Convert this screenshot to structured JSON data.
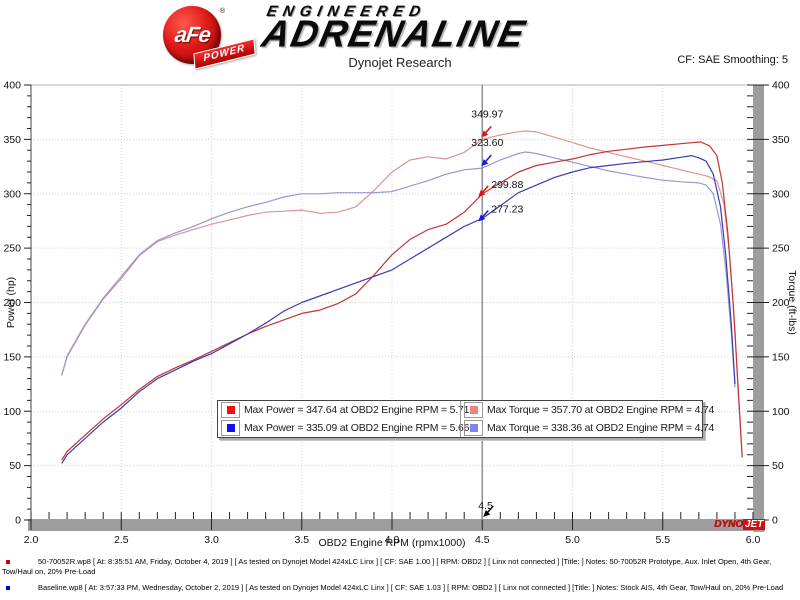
{
  "header": {
    "logo": {
      "afe": "aFe",
      "power": "POWER",
      "reg": "®"
    },
    "engineered": "ENGINEERED",
    "adrenaline": "ADRENALINE",
    "subtitle": "Dynojet Research",
    "cf_smoothing": "CF: SAE Smoothing: 5"
  },
  "chart_data": {
    "type": "line",
    "title": "",
    "xlabel": "OBD2 Engine RPM (rpmx1000)",
    "ylabel_left": "Power (hp)",
    "ylabel_right": "Torque (ft-lbs)",
    "xlim": [
      2.0,
      6.0
    ],
    "ylim": [
      0,
      400
    ],
    "x_major_ticks": [
      2.0,
      2.5,
      3.0,
      3.5,
      4.0,
      4.5,
      5.0,
      5.5,
      6.0
    ],
    "x_minor_step": 0.1,
    "y_major_ticks": [
      0,
      50,
      100,
      150,
      200,
      250,
      300,
      350,
      400
    ],
    "y_minor_step": 10,
    "grid": "dotted",
    "cursor": {
      "x": 4.5,
      "label": "4.5",
      "readouts": [
        {
          "value": 349.97,
          "label": "349.97",
          "series": "intake-torque",
          "side": "left",
          "text_color": "#e08888",
          "arrow_color": "#e01010"
        },
        {
          "value": 323.6,
          "label": "323.60",
          "series": "baseline-torque",
          "side": "left",
          "text_color": "#8888dd",
          "arrow_color": "#1616e6"
        },
        {
          "value": 299.88,
          "label": "299.88",
          "series": "intake-power",
          "side": "right",
          "text_color": "#cc3333",
          "arrow_color": "#e01010"
        },
        {
          "value": 277.23,
          "label": "277.23",
          "series": "baseline-power",
          "side": "right",
          "text_color": "#3f3fc6",
          "arrow_color": "#1616e6"
        }
      ]
    },
    "series": [
      {
        "name": "intake-torque",
        "axis": "torque",
        "color": "#dc9393",
        "points": [
          [
            2.17,
            133
          ],
          [
            2.2,
            150
          ],
          [
            2.3,
            179
          ],
          [
            2.4,
            203
          ],
          [
            2.5,
            222
          ],
          [
            2.6,
            243
          ],
          [
            2.7,
            256
          ],
          [
            2.8,
            262
          ],
          [
            2.9,
            267
          ],
          [
            3.0,
            272
          ],
          [
            3.1,
            276
          ],
          [
            3.2,
            280
          ],
          [
            3.3,
            283
          ],
          [
            3.4,
            284
          ],
          [
            3.5,
            285
          ],
          [
            3.6,
            282
          ],
          [
            3.7,
            283
          ],
          [
            3.8,
            288
          ],
          [
            3.9,
            303
          ],
          [
            4.0,
            320
          ],
          [
            4.1,
            331
          ],
          [
            4.2,
            334
          ],
          [
            4.3,
            332
          ],
          [
            4.4,
            338
          ],
          [
            4.5,
            349.97
          ],
          [
            4.6,
            354
          ],
          [
            4.7,
            357
          ],
          [
            4.74,
            357.7
          ],
          [
            4.8,
            357
          ],
          [
            4.9,
            352
          ],
          [
            5.0,
            347
          ],
          [
            5.1,
            342
          ],
          [
            5.2,
            338
          ],
          [
            5.3,
            334
          ],
          [
            5.4,
            330
          ],
          [
            5.5,
            326
          ],
          [
            5.6,
            322
          ],
          [
            5.7,
            318
          ],
          [
            5.75,
            316
          ],
          [
            5.8,
            312
          ],
          [
            5.84,
            290
          ],
          [
            5.87,
            245
          ],
          [
            5.9,
            175
          ],
          [
            5.92,
            110
          ],
          [
            5.94,
            57
          ]
        ]
      },
      {
        "name": "baseline-torque",
        "axis": "torque",
        "color": "#9797d7",
        "points": [
          [
            2.17,
            133
          ],
          [
            2.2,
            151
          ],
          [
            2.3,
            180
          ],
          [
            2.4,
            204
          ],
          [
            2.5,
            224
          ],
          [
            2.6,
            244
          ],
          [
            2.7,
            257
          ],
          [
            2.8,
            264
          ],
          [
            2.9,
            270
          ],
          [
            3.0,
            277
          ],
          [
            3.1,
            283
          ],
          [
            3.2,
            288
          ],
          [
            3.3,
            292
          ],
          [
            3.4,
            297
          ],
          [
            3.5,
            300
          ],
          [
            3.6,
            300
          ],
          [
            3.7,
            301
          ],
          [
            3.8,
            301
          ],
          [
            3.9,
            301
          ],
          [
            4.0,
            302
          ],
          [
            4.1,
            307
          ],
          [
            4.2,
            312
          ],
          [
            4.3,
            318
          ],
          [
            4.4,
            322
          ],
          [
            4.5,
            323.6
          ],
          [
            4.6,
            331
          ],
          [
            4.7,
            337
          ],
          [
            4.74,
            338.36
          ],
          [
            4.8,
            337
          ],
          [
            4.9,
            333
          ],
          [
            5.0,
            329
          ],
          [
            5.1,
            325
          ],
          [
            5.2,
            321
          ],
          [
            5.3,
            318
          ],
          [
            5.4,
            315
          ],
          [
            5.5,
            312.5
          ],
          [
            5.6,
            311
          ],
          [
            5.7,
            310
          ],
          [
            5.74,
            308
          ],
          [
            5.78,
            300
          ],
          [
            5.82,
            272
          ],
          [
            5.85,
            230
          ],
          [
            5.88,
            172
          ],
          [
            5.9,
            122
          ]
        ]
      },
      {
        "name": "intake-power",
        "axis": "power",
        "color": "#c23535",
        "points": [
          [
            2.17,
            55
          ],
          [
            2.2,
            63
          ],
          [
            2.3,
            78
          ],
          [
            2.4,
            93
          ],
          [
            2.5,
            106
          ],
          [
            2.6,
            120
          ],
          [
            2.7,
            132
          ],
          [
            2.8,
            140
          ],
          [
            2.9,
            147
          ],
          [
            3.0,
            155
          ],
          [
            3.1,
            163
          ],
          [
            3.2,
            171
          ],
          [
            3.3,
            178
          ],
          [
            3.4,
            184
          ],
          [
            3.5,
            190
          ],
          [
            3.6,
            193
          ],
          [
            3.7,
            199
          ],
          [
            3.8,
            208
          ],
          [
            3.9,
            225
          ],
          [
            4.0,
            244
          ],
          [
            4.1,
            258
          ],
          [
            4.2,
            267
          ],
          [
            4.3,
            272
          ],
          [
            4.4,
            283
          ],
          [
            4.5,
            299.88
          ],
          [
            4.6,
            310
          ],
          [
            4.7,
            320
          ],
          [
            4.8,
            326
          ],
          [
            4.9,
            329
          ],
          [
            5.0,
            332
          ],
          [
            5.1,
            336
          ],
          [
            5.2,
            339
          ],
          [
            5.3,
            341
          ],
          [
            5.4,
            343
          ],
          [
            5.5,
            344.5
          ],
          [
            5.6,
            346
          ],
          [
            5.71,
            347.64
          ],
          [
            5.76,
            344
          ],
          [
            5.8,
            335
          ],
          [
            5.83,
            310
          ],
          [
            5.86,
            265
          ],
          [
            5.89,
            200
          ],
          [
            5.92,
            115
          ],
          [
            5.94,
            58
          ]
        ]
      },
      {
        "name": "baseline-power",
        "axis": "power",
        "color": "#3b3bb2",
        "points": [
          [
            2.17,
            52
          ],
          [
            2.2,
            60
          ],
          [
            2.3,
            75
          ],
          [
            2.4,
            90
          ],
          [
            2.5,
            103
          ],
          [
            2.6,
            118
          ],
          [
            2.7,
            130
          ],
          [
            2.8,
            138
          ],
          [
            2.9,
            146
          ],
          [
            3.0,
            153
          ],
          [
            3.1,
            162
          ],
          [
            3.2,
            171
          ],
          [
            3.3,
            181
          ],
          [
            3.4,
            192
          ],
          [
            3.5,
            200
          ],
          [
            3.6,
            206
          ],
          [
            3.7,
            212
          ],
          [
            3.8,
            218
          ],
          [
            3.9,
            224
          ],
          [
            4.0,
            230
          ],
          [
            4.1,
            240
          ],
          [
            4.2,
            250
          ],
          [
            4.3,
            260
          ],
          [
            4.4,
            270
          ],
          [
            4.5,
            277.23
          ],
          [
            4.6,
            289
          ],
          [
            4.7,
            301
          ],
          [
            4.8,
            308
          ],
          [
            4.9,
            315
          ],
          [
            5.0,
            320
          ],
          [
            5.1,
            324
          ],
          [
            5.2,
            326
          ],
          [
            5.3,
            328
          ],
          [
            5.4,
            329.5
          ],
          [
            5.5,
            331
          ],
          [
            5.6,
            333.5
          ],
          [
            5.66,
            335.09
          ],
          [
            5.7,
            333
          ],
          [
            5.74,
            330
          ],
          [
            5.78,
            318
          ],
          [
            5.82,
            288
          ],
          [
            5.85,
            242
          ],
          [
            5.88,
            180
          ],
          [
            5.9,
            125
          ]
        ]
      }
    ]
  },
  "legend": {
    "entries": [
      {
        "swatch": "#f01010",
        "text": "Max Power = 347.64 at OBD2 Engine RPM = 5.71"
      },
      {
        "swatch": "#1010f0",
        "text": "Max Power = 335.09 at OBD2 Engine RPM = 5.66"
      },
      {
        "swatch": "#f08282",
        "text": "Max Torque = 357.70 at OBD2 Engine RPM = 4.74"
      },
      {
        "swatch": "#8282f0",
        "text": "Max Torque = 338.36 at OBD2 Engine RPM = 4.74"
      }
    ]
  },
  "watermark": {
    "dyno": "DYNO",
    "jet": "JET"
  },
  "footer": {
    "entries": [
      {
        "bullet": "#cc0000",
        "text": "50-70052R.wp8 [ At: 8:35:51 AM, Friday, October 4, 2019 ] [ As tested on Dynojet Model 424xLC Linx ] [ CF: SAE 1.00 ] [ RPM: OBD2 ] [ Linx not connected ] [Title: ]  Notes: 50-70052R Prototype, Aux. Inlet Open, 4th Gear, Tow/Haul on, 20% Pre-Load"
      },
      {
        "bullet": "#0000cc",
        "text": "Baseline.wp8 [ At: 3:57:33 PM, Wednesday, October 2, 2019 ] [ As tested on Dynojet Model 424xLC Linx ] [ CF: SAE 1.03 ] [ RPM: OBD2 ] [ Linx not connected ] [Title: ]  Notes: Stock AIS, 4th Gear, Tow/Haul on, 20% Pre-Load"
      }
    ]
  }
}
